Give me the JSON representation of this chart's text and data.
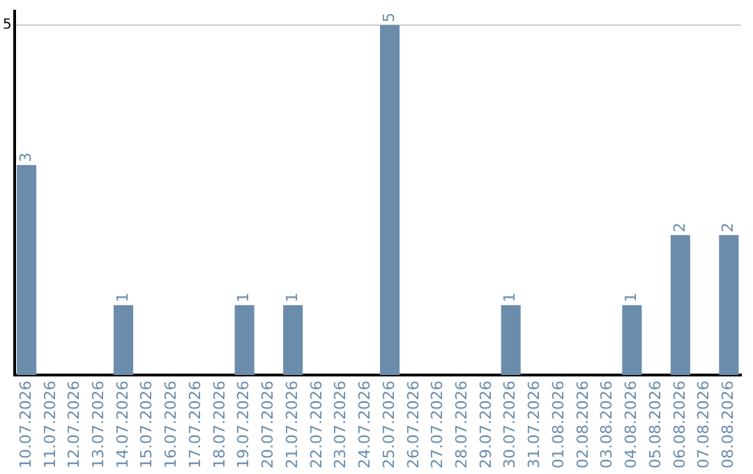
{
  "chart_data": {
    "type": "bar",
    "categories": [
      "10.07.2026",
      "11.07.2026",
      "12.07.2026",
      "13.07.2026",
      "14.07.2026",
      "15.07.2026",
      "16.07.2026",
      "17.07.2026",
      "18.07.2026",
      "19.07.2026",
      "20.07.2026",
      "21.07.2026",
      "22.07.2026",
      "23.07.2026",
      "24.07.2026",
      "25.07.2026",
      "26.07.2026",
      "27.07.2026",
      "28.07.2026",
      "29.07.2026",
      "30.07.2026",
      "31.07.2026",
      "01.08.2026",
      "02.08.2026",
      "03.08.2026",
      "04.08.2026",
      "05.08.2026",
      "06.08.2026",
      "07.08.2026",
      "08.08.2026"
    ],
    "values": [
      3,
      0,
      0,
      0,
      1,
      0,
      0,
      0,
      0,
      1,
      0,
      1,
      0,
      0,
      0,
      5,
      0,
      0,
      0,
      0,
      1,
      0,
      0,
      0,
      0,
      1,
      0,
      2,
      0,
      2
    ],
    "value_labels": [
      "3",
      null,
      null,
      null,
      "1",
      null,
      null,
      null,
      null,
      "1",
      null,
      "1",
      null,
      null,
      null,
      "5",
      null,
      null,
      null,
      null,
      "1",
      null,
      null,
      null,
      null,
      "1",
      null,
      "2",
      null,
      "2"
    ],
    "color": "#6b8cab",
    "ylim": [
      0,
      5.2
    ],
    "yticks": [
      5
    ],
    "grid": "y",
    "legend": false
  }
}
